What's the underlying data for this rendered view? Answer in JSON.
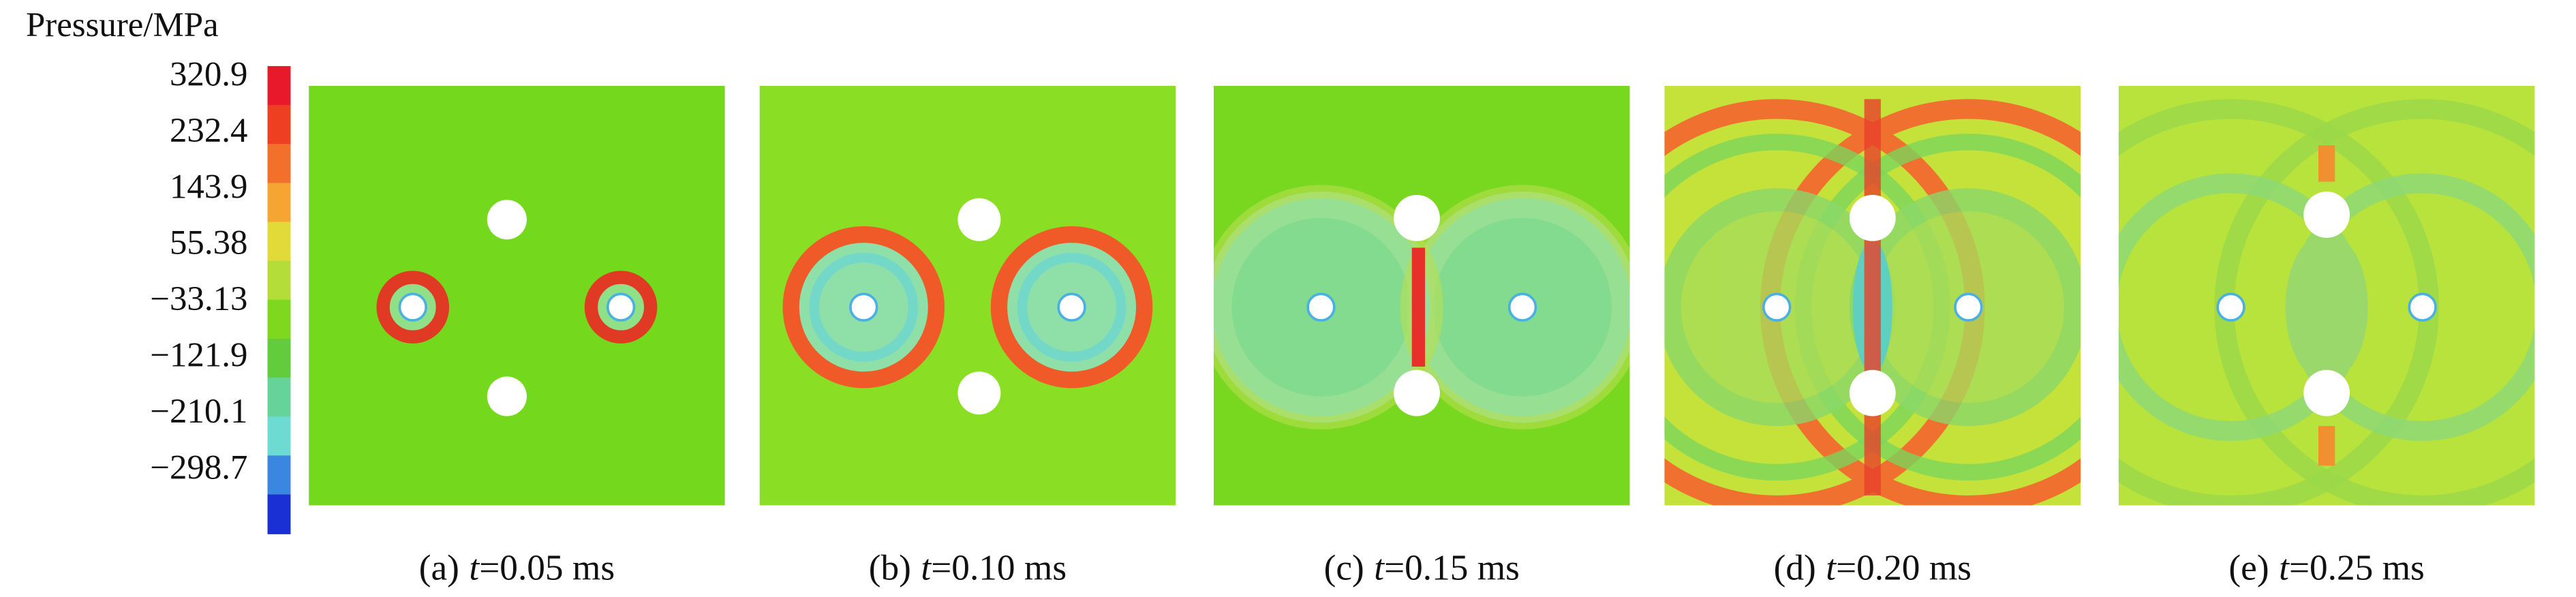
{
  "colorbar": {
    "title": "Pressure/MPa",
    "ticks": [
      "320.9",
      "232.4",
      "143.9",
      "55.38",
      "−33.13",
      "−121.9",
      "−210.1",
      "−298.7"
    ]
  },
  "panels": [
    {
      "label": "(a)",
      "variable": "t",
      "value": "=0.05 ms"
    },
    {
      "label": "(b)",
      "variable": "t",
      "value": "=0.10 ms"
    },
    {
      "label": "(c)",
      "variable": "t",
      "value": "=0.15 ms"
    },
    {
      "label": "(d)",
      "variable": "t",
      "value": "=0.20 ms"
    },
    {
      "label": "(e)",
      "variable": "t",
      "value": "=0.25 ms"
    }
  ]
}
